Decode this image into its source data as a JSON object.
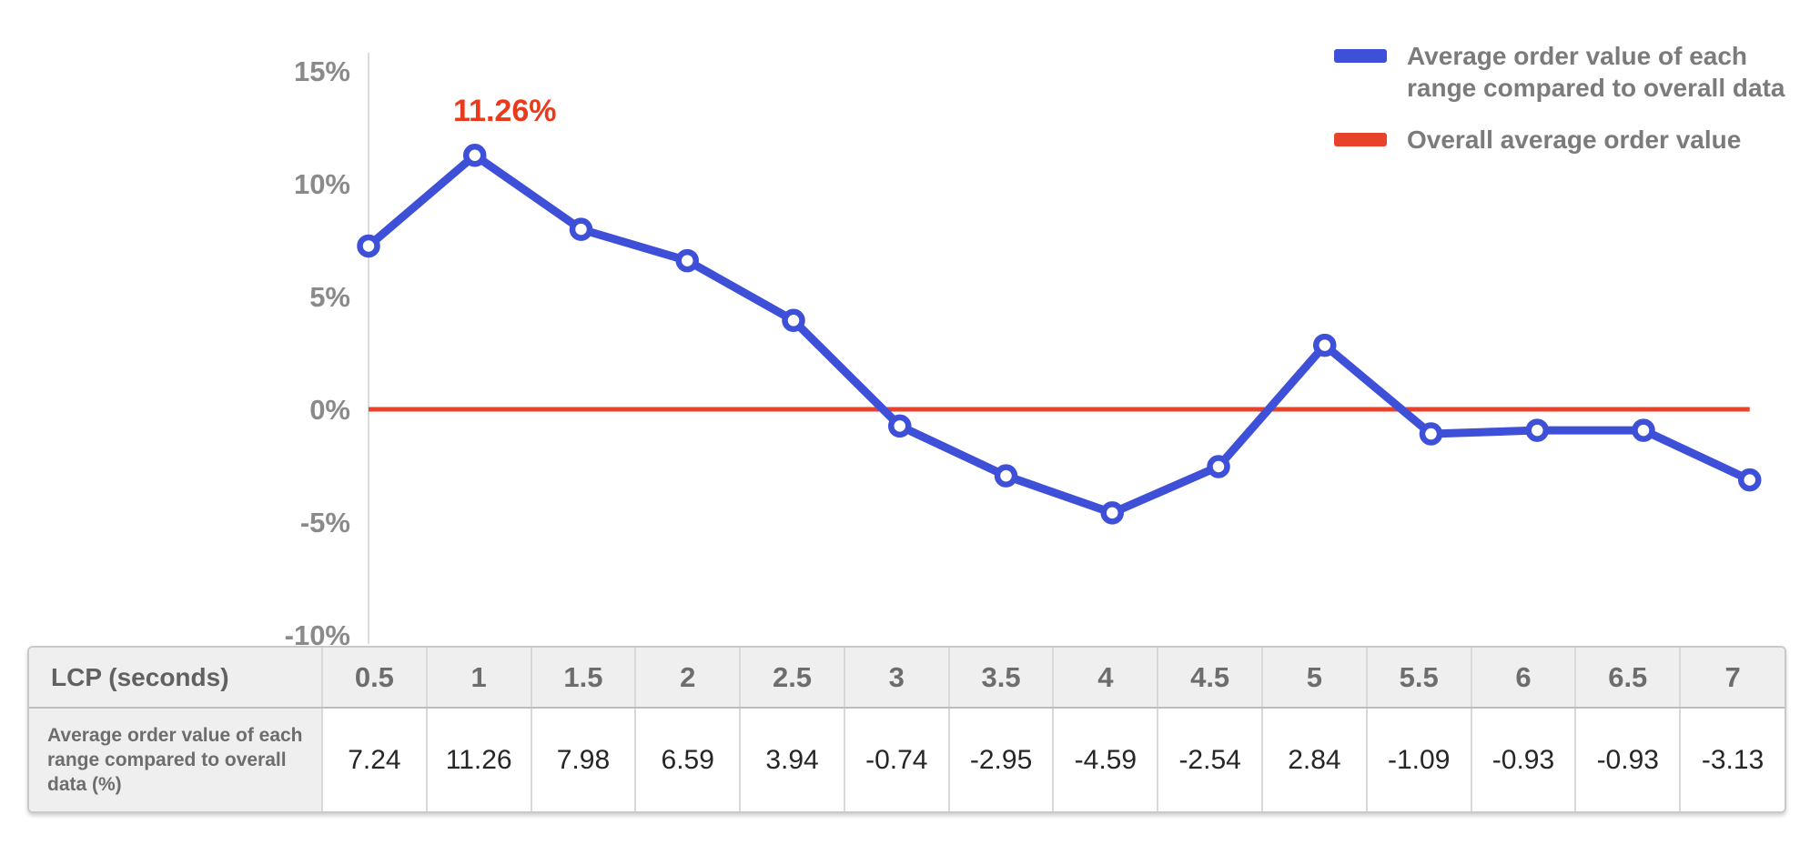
{
  "chart_data": {
    "type": "line",
    "title": "",
    "xlabel": "LCP (seconds)",
    "ylabel": "",
    "categories": [
      "0.5",
      "1",
      "1.5",
      "2",
      "2.5",
      "3",
      "3.5",
      "4",
      "4.5",
      "5",
      "5.5",
      "6",
      "6.5",
      "7"
    ],
    "series": [
      {
        "name": "Average order value of each range compared to overall data",
        "values": [
          7.24,
          11.26,
          7.98,
          6.59,
          3.94,
          -0.74,
          -2.95,
          -4.59,
          -2.54,
          2.84,
          -1.09,
          -0.93,
          -0.93,
          -3.13
        ],
        "color": "#3e4fd8"
      },
      {
        "name": "Overall average order value",
        "type": "reference",
        "value": 0,
        "color": "#e8432a"
      }
    ],
    "annotation": {
      "text": "11.26%",
      "index": 1,
      "value": 11.26,
      "color": "#e93a1b"
    },
    "y_ticks": [
      "15%",
      "10%",
      "5%",
      "0%",
      "-5%",
      "-10%"
    ],
    "ylim": [
      -10,
      15
    ],
    "grid": false,
    "legend_position": "top-right",
    "axis_color": "#dcdcdc",
    "tick_label_color": "#8a8a8a"
  },
  "legend": {
    "items": [
      {
        "swatch_color": "#3e4fd8",
        "lines": [
          "Average order value of each",
          "range compared to overall data"
        ]
      },
      {
        "swatch_color": "#e8432a",
        "lines": [
          "Overall average order value"
        ]
      }
    ]
  },
  "table": {
    "header_label": "LCP (seconds)",
    "columns": [
      "0.5",
      "1",
      "1.5",
      "2",
      "2.5",
      "3",
      "3.5",
      "4",
      "4.5",
      "5",
      "5.5",
      "6",
      "6.5",
      "7"
    ],
    "row_label": "Average order value of each range compared to overall data (%)",
    "values": [
      "7.24",
      "11.26",
      "7.98",
      "6.59",
      "3.94",
      "-0.74",
      "-2.95",
      "-4.59",
      "-2.54",
      "2.84",
      "-1.09",
      "-0.93",
      "-0.93",
      "-3.13"
    ]
  }
}
